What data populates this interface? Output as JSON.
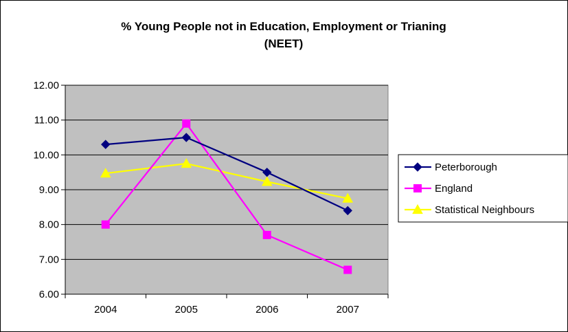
{
  "chart_data": {
    "type": "line",
    "title_lines": [
      "% Young People not in Education, Employment or Trianing",
      "(NEET)"
    ],
    "categories": [
      "2004",
      "2005",
      "2006",
      "2007"
    ],
    "ylim": [
      6.0,
      12.0
    ],
    "ytick_values": [
      6,
      7,
      8,
      9,
      10,
      11,
      12
    ],
    "ytick_labels": [
      "6.00",
      "7.00",
      "8.00",
      "9.00",
      "10.00",
      "11.00",
      "12.00"
    ],
    "grid": true,
    "plot_background": "#c0c0c0",
    "legend_position": "right",
    "series": [
      {
        "name": "Peterborough",
        "values": [
          10.3,
          10.5,
          9.5,
          8.4
        ],
        "color": "#000080",
        "marker": "diamond"
      },
      {
        "name": "England",
        "values": [
          8.0,
          10.9,
          7.7,
          6.7
        ],
        "color": "#ff00ff",
        "marker": "square"
      },
      {
        "name": "Statistical Neighbours",
        "values": [
          9.47,
          9.75,
          9.23,
          8.75
        ],
        "color": "#ffff00",
        "marker": "triangle"
      }
    ]
  }
}
